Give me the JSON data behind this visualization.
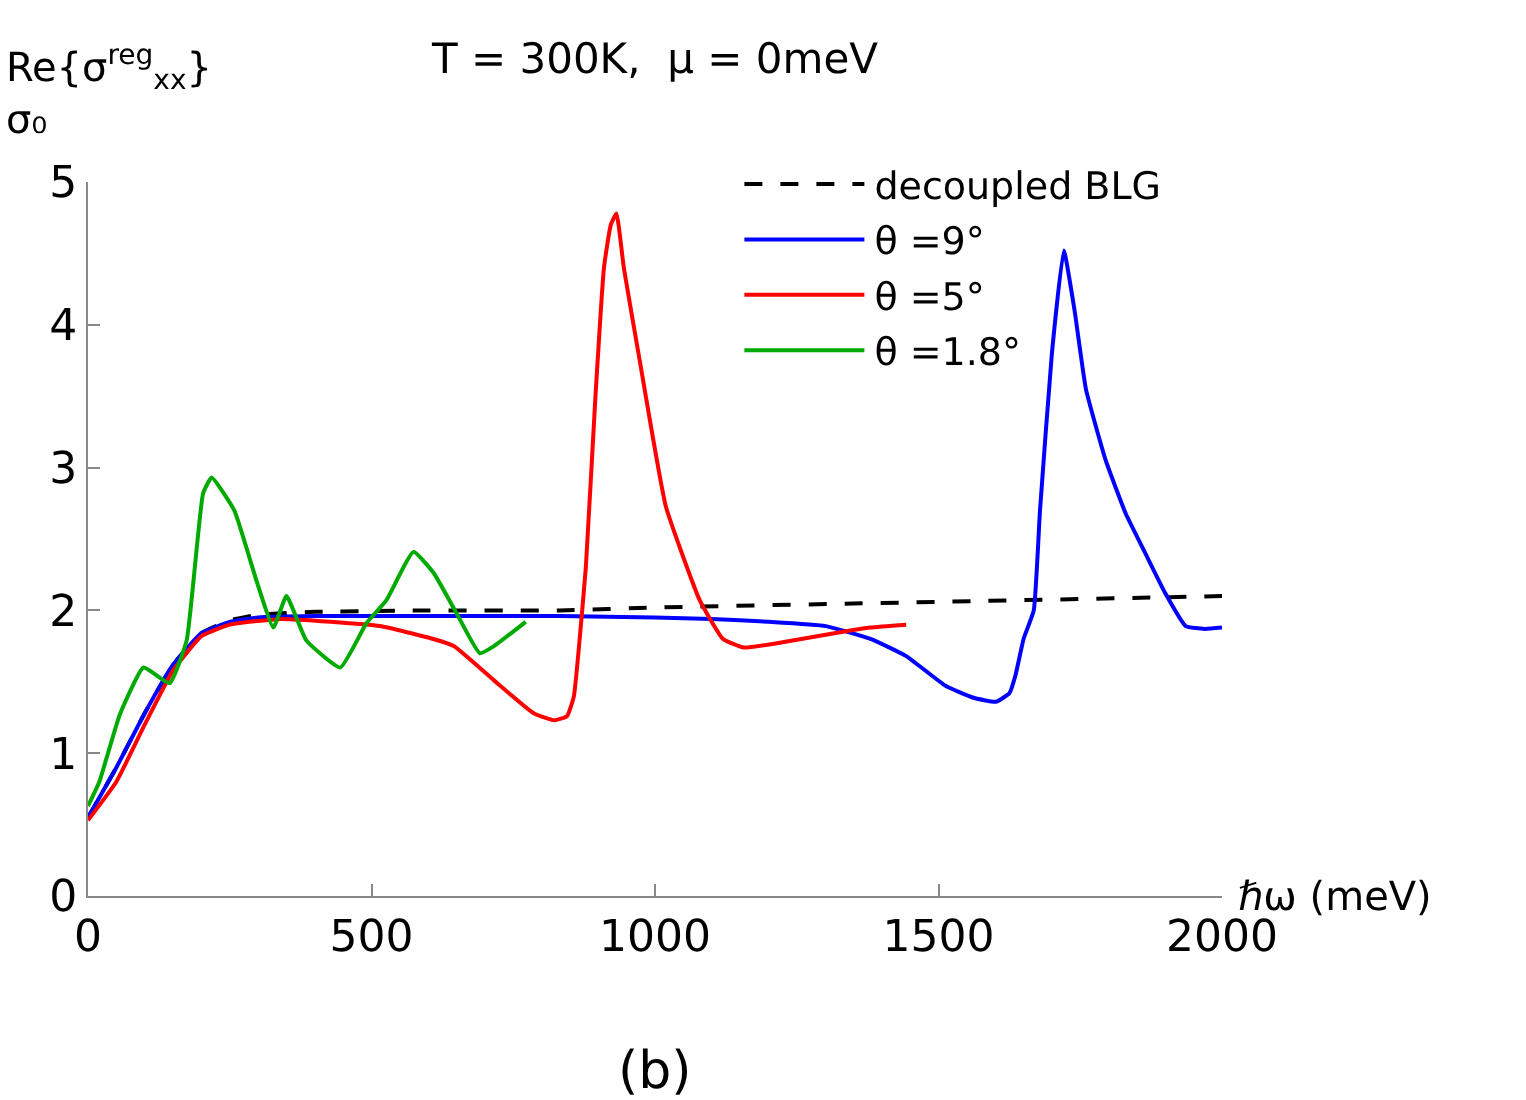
{
  "chart_data": {
    "type": "line",
    "title": "T = 300K,  μ = 0meV",
    "xlabel": "ℏω (meV)",
    "ylabel": "Re{σ$^{reg}$$_{xx}$}\nσ₀",
    "annotations": [
      "(b)"
    ],
    "xlim": [
      0,
      2000
    ],
    "xticks": [
      0,
      500,
      1000,
      1500,
      2000
    ],
    "ylim": [
      0,
      5
    ],
    "yticks": [
      0,
      1,
      2,
      3,
      4,
      5
    ],
    "legend": "top right",
    "marker": "none",
    "series": [
      {
        "name": "decoupled BLG",
        "color": "#000000",
        "line_style": "dashed",
        "x": [
          0,
          50,
          100,
          150,
          200,
          250,
          300,
          400,
          600,
          832,
          1000,
          1500,
          2000
        ],
        "values": [
          0.55,
          0.9,
          1.28,
          1.62,
          1.84,
          1.93,
          1.97,
          1.99,
          2.0,
          2.0,
          2.02,
          2.06,
          2.1
        ]
      },
      {
        "name": "θ =9°",
        "color": "#0000ff",
        "line_style": "solid",
        "x": [
          0,
          50,
          100,
          150,
          200,
          250,
          300,
          400,
          600,
          832,
          1000,
          1100,
          1200,
          1301,
          1380,
          1443,
          1513,
          1560,
          1601,
          1625,
          1636,
          1650,
          1668,
          1679,
          1700,
          1721,
          1740,
          1760,
          1795,
          1830,
          1866,
          1900,
          1936,
          1970,
          2000
        ],
        "values": [
          0.55,
          0.9,
          1.28,
          1.62,
          1.84,
          1.92,
          1.95,
          1.96,
          1.96,
          1.96,
          1.95,
          1.94,
          1.92,
          1.89,
          1.8,
          1.68,
          1.47,
          1.39,
          1.36,
          1.42,
          1.55,
          1.8,
          2.0,
          2.7,
          3.8,
          4.52,
          4.1,
          3.55,
          3.05,
          2.68,
          2.39,
          2.12,
          1.89,
          1.87,
          1.88
        ]
      },
      {
        "name": "θ =5°",
        "color": "#ff0000",
        "line_style": "solid",
        "x": [
          0,
          50,
          100,
          150,
          200,
          250,
          340,
          515,
          600,
          645,
          716,
          786,
          822,
          845,
          857,
          866,
          878,
          895,
          910,
          922,
          932,
          945,
          973,
          1019,
          1079,
          1120,
          1157,
          1230,
          1301,
          1380,
          1443
        ],
        "values": [
          0.53,
          0.8,
          1.2,
          1.58,
          1.82,
          1.9,
          1.94,
          1.89,
          1.81,
          1.75,
          1.51,
          1.28,
          1.23,
          1.26,
          1.4,
          1.75,
          2.3,
          3.5,
          4.4,
          4.7,
          4.78,
          4.4,
          3.75,
          2.73,
          2.07,
          1.8,
          1.74,
          1.78,
          1.83,
          1.88,
          1.9
        ]
      },
      {
        "name": "θ =1.8°",
        "color": "#00aa00",
        "line_style": "solid",
        "x": [
          0,
          20,
          56,
          98,
          144,
          174,
          203,
          218,
          258,
          297,
          327,
          350,
          385,
          445,
          491,
          526,
          574,
          610,
          650,
          691,
          716,
          772
        ],
        "values": [
          0.63,
          0.8,
          1.27,
          1.6,
          1.49,
          1.79,
          2.82,
          2.93,
          2.7,
          2.21,
          1.88,
          2.1,
          1.79,
          1.6,
          1.91,
          2.07,
          2.41,
          2.26,
          1.98,
          1.7,
          1.75,
          1.92
        ]
      }
    ]
  }
}
